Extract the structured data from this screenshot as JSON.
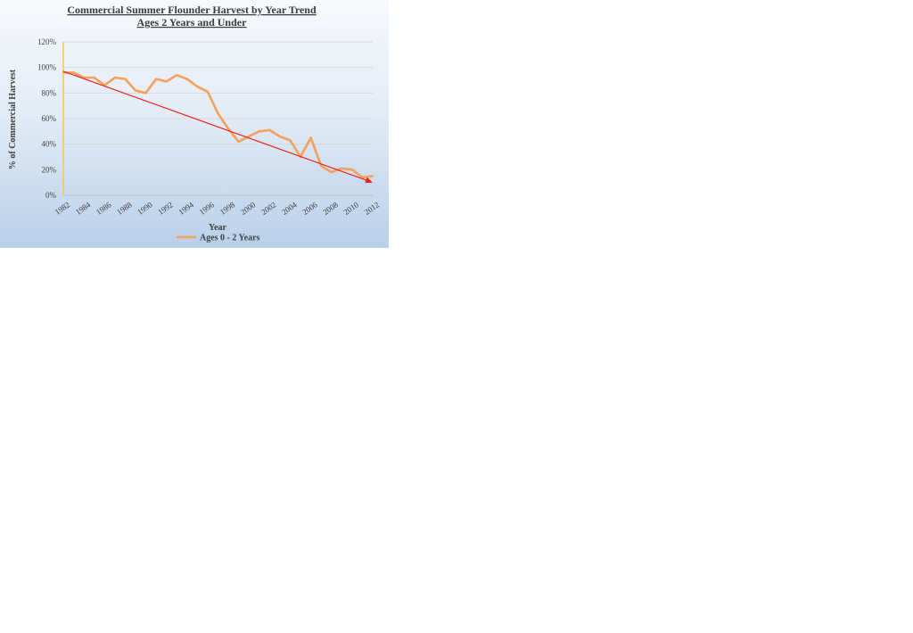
{
  "chart_data": {
    "type": "line",
    "title": "Commercial Summer Flounder Harvest by Year Trend",
    "subtitle": "Ages 2 Years and Under",
    "xlabel": "Year",
    "ylabel": "% of Commercial Harvest",
    "xlim": [
      1982,
      2012
    ],
    "ylim": [
      0,
      120
    ],
    "yticks": [
      "0%",
      "20%",
      "40%",
      "60%",
      "80%",
      "100%",
      "120%"
    ],
    "xticks": [
      "1982",
      "1984",
      "1986",
      "1988",
      "1990",
      "1992",
      "1994",
      "1996",
      "1998",
      "2000",
      "2002",
      "2004",
      "2006",
      "2008",
      "2010",
      "2012"
    ],
    "grid": true,
    "legend": "bottom",
    "series": [
      {
        "name": "Ages 0 - 2 Years",
        "color": "#f4a15d",
        "x": [
          1982,
          1983,
          1984,
          1985,
          1986,
          1987,
          1988,
          1989,
          1990,
          1991,
          1992,
          1993,
          1994,
          1995,
          1996,
          1997,
          1998,
          1999,
          2000,
          2001,
          2002,
          2003,
          2004,
          2005,
          2006,
          2007,
          2008,
          2009,
          2010,
          2011,
          2012
        ],
        "values": [
          96,
          96,
          92,
          92,
          86,
          92,
          91,
          82,
          80,
          91,
          89,
          94,
          91,
          85,
          81,
          64,
          52,
          42,
          46,
          50,
          51,
          46,
          43,
          30,
          45,
          23,
          18,
          21,
          20,
          14,
          15
        ]
      }
    ],
    "trendline": {
      "color": "#e8211b",
      "x": [
        1982,
        2012
      ],
      "values": [
        97,
        10
      ]
    }
  }
}
